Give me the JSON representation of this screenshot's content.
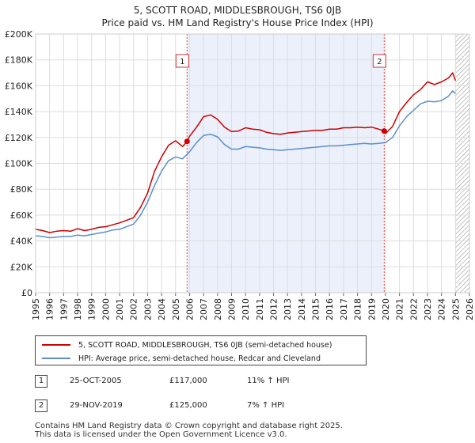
{
  "chart_data": {
    "type": "line",
    "title": "5, SCOTT ROAD, MIDDLESBROUGH, TS6 0JB",
    "subtitle": "Price paid vs. HM Land Registry's House Price Index (HPI)",
    "xlim": [
      1995,
      2026
    ],
    "ylim": [
      0,
      200000
    ],
    "x_ticks": [
      "1995",
      "1996",
      "1997",
      "1998",
      "1999",
      "2000",
      "2001",
      "2002",
      "2003",
      "2004",
      "2005",
      "2006",
      "2007",
      "2008",
      "2009",
      "2010",
      "2011",
      "2012",
      "2013",
      "2014",
      "2015",
      "2016",
      "2017",
      "2018",
      "2019",
      "2020",
      "2021",
      "2022",
      "2023",
      "2024",
      "2025",
      "2026"
    ],
    "y_ticks": [
      {
        "value": 0,
        "label": "£0"
      },
      {
        "value": 20000,
        "label": "£20K"
      },
      {
        "value": 40000,
        "label": "£40K"
      },
      {
        "value": 60000,
        "label": "£60K"
      },
      {
        "value": 80000,
        "label": "£80K"
      },
      {
        "value": 100000,
        "label": "£100K"
      },
      {
        "value": 120000,
        "label": "£120K"
      },
      {
        "value": 140000,
        "label": "£140K"
      },
      {
        "value": 160000,
        "label": "£160K"
      },
      {
        "value": 180000,
        "label": "£180K"
      },
      {
        "value": 200000,
        "label": "£200K"
      }
    ],
    "grid": true,
    "shaded_span": [
      2005.82,
      2019.91
    ],
    "future_hatch_from": 2025.0,
    "series": [
      {
        "name": "5, SCOTT ROAD, MIDDLESBROUGH, TS6 0JB (semi-detached house)",
        "color": "#cc0000",
        "x": [
          1995.0,
          1995.5,
          1996.0,
          1996.5,
          1997.0,
          1997.5,
          1998.0,
          1998.5,
          1999.0,
          1999.5,
          2000.0,
          2000.5,
          2001.0,
          2001.5,
          2002.0,
          2002.5,
          2003.0,
          2003.5,
          2004.0,
          2004.5,
          2005.0,
          2005.5,
          2005.82,
          2006.0,
          2006.5,
          2007.0,
          2007.5,
          2008.0,
          2008.5,
          2009.0,
          2009.5,
          2010.0,
          2010.5,
          2011.0,
          2011.5,
          2012.0,
          2012.5,
          2013.0,
          2013.5,
          2014.0,
          2014.5,
          2015.0,
          2015.5,
          2016.0,
          2016.5,
          2017.0,
          2017.5,
          2018.0,
          2018.5,
          2019.0,
          2019.5,
          2019.91,
          2020.0,
          2020.5,
          2021.0,
          2021.5,
          2022.0,
          2022.5,
          2023.0,
          2023.5,
          2024.0,
          2024.5,
          2024.8,
          2025.0
        ],
        "y": [
          49000,
          48000,
          46500,
          47500,
          48000,
          47500,
          49500,
          48000,
          49000,
          50500,
          51000,
          52500,
          54000,
          56000,
          58000,
          66000,
          77000,
          94000,
          105000,
          114000,
          117500,
          113000,
          117000,
          121000,
          128000,
          136000,
          137500,
          134000,
          128000,
          124500,
          125000,
          127500,
          126500,
          126000,
          124000,
          123000,
          122500,
          123500,
          124000,
          124500,
          125000,
          125500,
          125500,
          126500,
          126500,
          127500,
          127500,
          128000,
          127500,
          128000,
          126500,
          125000,
          123000,
          128500,
          140000,
          147000,
          153000,
          157000,
          163000,
          161000,
          163000,
          166000,
          170000,
          164000
        ]
      },
      {
        "name": "HPI: Average price, semi-detached house, Redcar and Cleveland",
        "color": "#5b8fc9",
        "x": [
          1995.0,
          1995.5,
          1996.0,
          1996.5,
          1997.0,
          1997.5,
          1998.0,
          1998.5,
          1999.0,
          1999.5,
          2000.0,
          2000.5,
          2001.0,
          2001.5,
          2002.0,
          2002.5,
          2003.0,
          2003.5,
          2004.0,
          2004.5,
          2005.0,
          2005.5,
          2006.0,
          2006.5,
          2007.0,
          2007.5,
          2008.0,
          2008.5,
          2009.0,
          2009.5,
          2010.0,
          2010.5,
          2011.0,
          2011.5,
          2012.0,
          2012.5,
          2013.0,
          2013.5,
          2014.0,
          2014.5,
          2015.0,
          2015.5,
          2016.0,
          2016.5,
          2017.0,
          2017.5,
          2018.0,
          2018.5,
          2019.0,
          2019.5,
          2020.0,
          2020.5,
          2021.0,
          2021.5,
          2022.0,
          2022.5,
          2023.0,
          2023.5,
          2024.0,
          2024.5,
          2024.8,
          2025.0
        ],
        "y": [
          44000,
          43500,
          42500,
          43000,
          43500,
          43500,
          44500,
          44000,
          45000,
          46000,
          47000,
          48500,
          49000,
          51000,
          53000,
          60000,
          70000,
          83000,
          94000,
          102000,
          105000,
          103500,
          109000,
          116000,
          121500,
          122500,
          120500,
          114500,
          111000,
          111000,
          113000,
          112500,
          112000,
          111000,
          110500,
          110000,
          110500,
          111000,
          111500,
          112000,
          112500,
          113000,
          113500,
          113500,
          114000,
          114500,
          115000,
          115500,
          115000,
          115500,
          116000,
          120000,
          129000,
          136000,
          141000,
          146000,
          148000,
          147500,
          148500,
          152000,
          156000,
          154000
        ]
      }
    ],
    "sales": [
      {
        "num": "1",
        "x": 2005.82,
        "price": 117000
      },
      {
        "num": "2",
        "x": 2019.91,
        "price": 125000
      }
    ]
  },
  "legend": {
    "items": [
      {
        "label": "5, SCOTT ROAD, MIDDLESBROUGH, TS6 0JB (semi-detached house)",
        "color": "#cc0000"
      },
      {
        "label": "HPI: Average price, semi-detached house, Redcar and Cleveland",
        "color": "#5b8fc9"
      }
    ]
  },
  "sales_table": [
    {
      "num": "1",
      "date": "25-OCT-2005",
      "price": "£117,000",
      "hpi": "11% ↑ HPI"
    },
    {
      "num": "2",
      "date": "29-NOV-2019",
      "price": "£125,000",
      "hpi": "7% ↑ HPI"
    }
  ],
  "footer": {
    "line1": "Contains HM Land Registry data © Crown copyright and database right 2025.",
    "line2": "This data is licensed under the Open Government Licence v3.0."
  }
}
